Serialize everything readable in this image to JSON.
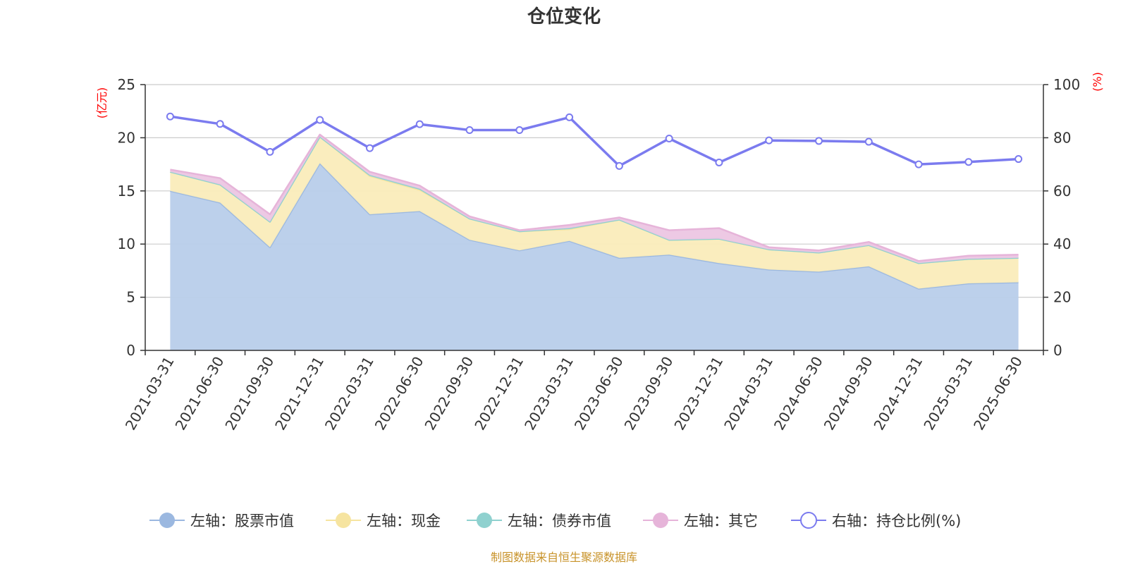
{
  "chart_data": {
    "type": "area",
    "title": "仓位变化",
    "categories": [
      "2021-03-31",
      "2021-06-30",
      "2021-09-30",
      "2021-12-31",
      "2022-03-31",
      "2022-06-30",
      "2022-09-30",
      "2022-12-31",
      "2023-03-31",
      "2023-06-30",
      "2023-09-30",
      "2023-12-31",
      "2024-03-31",
      "2024-06-30",
      "2024-09-30",
      "2024-12-31",
      "2025-03-31",
      "2025-06-30"
    ],
    "left_axis": {
      "unit": "(亿元)",
      "ylim": [
        0,
        25
      ],
      "ticks": [
        "0",
        "5",
        "10",
        "15",
        "20",
        "25"
      ]
    },
    "right_axis": {
      "unit": "(%)",
      "ylim": [
        0,
        100
      ],
      "ticks": [
        "0",
        "20",
        "40",
        "60",
        "80",
        "100"
      ]
    },
    "series": [
      {
        "name": "左轴：股票市值",
        "kind": "stacked-area",
        "axis": "left",
        "color": "#9bb8e0",
        "fill": "#b8cdea",
        "values": [
          15.0,
          13.9,
          9.7,
          17.6,
          12.8,
          13.1,
          10.4,
          9.4,
          10.3,
          8.7,
          9.0,
          8.2,
          7.6,
          7.4,
          7.9,
          5.8,
          6.3,
          6.4
        ]
      },
      {
        "name": "左轴：现金",
        "kind": "stacked-area",
        "axis": "left",
        "color": "#f6e4a0",
        "fill": "#faecbb",
        "values": [
          1.8,
          1.7,
          2.4,
          2.5,
          3.6,
          2.0,
          2.0,
          1.8,
          1.1,
          3.6,
          1.4,
          2.3,
          1.9,
          1.8,
          2.0,
          2.4,
          2.3,
          2.3
        ]
      },
      {
        "name": "左轴：债券市值",
        "kind": "stacked-area",
        "axis": "left",
        "color": "#8fd1cf",
        "fill": "#a9dcda",
        "values": [
          0.0,
          0.0,
          0.0,
          0.0,
          0.1,
          0.1,
          0.0,
          0.0,
          0.1,
          0.0,
          0.0,
          0.0,
          0.0,
          0.0,
          0.0,
          0.0,
          0.0,
          0.0
        ]
      },
      {
        "name": "左轴：其它",
        "kind": "stacked-area",
        "axis": "left",
        "color": "#e6b4d9",
        "fill": "#ecc6e3",
        "values": [
          0.2,
          0.6,
          0.7,
          0.2,
          0.3,
          0.3,
          0.2,
          0.1,
          0.3,
          0.2,
          0.9,
          1.0,
          0.2,
          0.2,
          0.3,
          0.2,
          0.3,
          0.3
        ]
      },
      {
        "name": "右轴：持仓比例(%)",
        "kind": "line",
        "axis": "right",
        "color": "#7b7bef",
        "values": [
          88.0,
          85.2,
          74.7,
          86.7,
          76.1,
          85.1,
          82.9,
          82.9,
          87.7,
          69.4,
          79.7,
          70.7,
          79.0,
          78.8,
          78.5,
          70.0,
          70.9,
          72.0
        ]
      }
    ],
    "grid": true,
    "legend_position": "bottom",
    "source": "制图数据来自恒生聚源数据库",
    "colors": {
      "left_unit": "#ff0000",
      "right_unit": "#ff0000",
      "source": "#c8932a",
      "axis": "#333333",
      "grid": "#cccccc"
    }
  }
}
